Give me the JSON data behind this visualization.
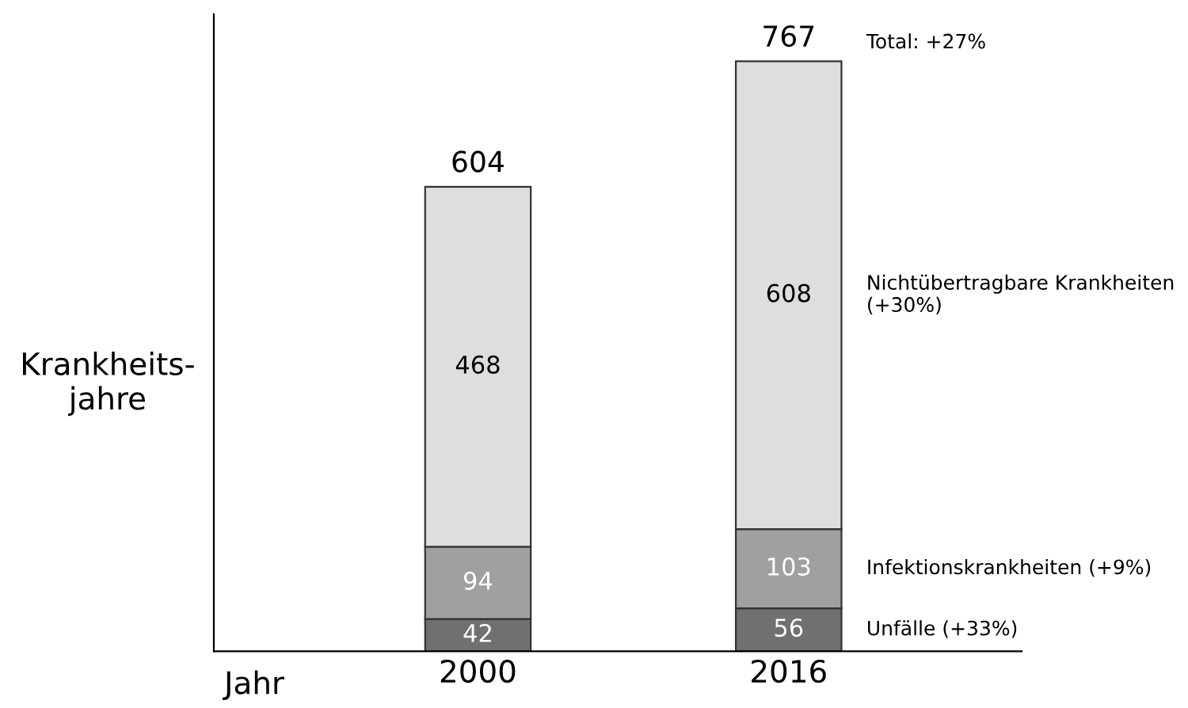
{
  "chart_data": {
    "type": "bar",
    "stacked": true,
    "categories": [
      "2000",
      "2016"
    ],
    "series": [
      {
        "name": "Unfälle (+33%)",
        "color": "#707070",
        "values": [
          42,
          56
        ]
      },
      {
        "name": "Infektionskrankheiten (+9%)",
        "color": "#a0a0a0",
        "values": [
          94,
          103
        ]
      },
      {
        "name": "Nichtübertragbare Krankheiten (+30%)",
        "color": "#dedede",
        "values": [
          468,
          608
        ]
      }
    ],
    "data_labels": true,
    "totals": [
      "604",
      "767"
    ],
    "annotations": [
      "Total: +27%"
    ],
    "xlabel": "Jahr",
    "ylabel": "Krankheits-\njahre",
    "tick_labels": "x",
    "grid": false,
    "legend": false
  }
}
